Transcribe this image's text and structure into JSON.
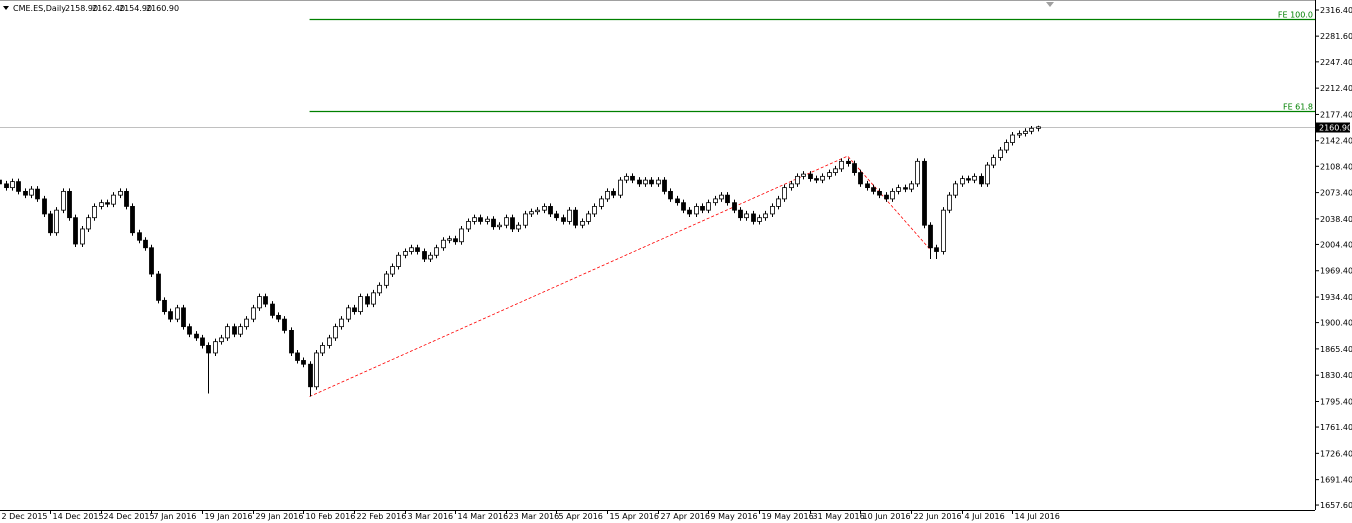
{
  "header": {
    "symbol": "CME.ES,Daily",
    "ohlc_labels": [
      "2158.90",
      "2162.40",
      "2154.90",
      "2160.90"
    ]
  },
  "chart_data": {
    "type": "candlestick",
    "categories": [
      "2 Dec 2015",
      null,
      null,
      null,
      null,
      null,
      null,
      null,
      "14 Dec 2015",
      null,
      null,
      null,
      null,
      null,
      null,
      null,
      "24 Dec 2015",
      null,
      null,
      null,
      null,
      null,
      null,
      null,
      "7 Jan 2016",
      null,
      null,
      null,
      null,
      null,
      null,
      null,
      "19 Jan 2016",
      null,
      null,
      null,
      null,
      null,
      null,
      null,
      "29 Jan 2016",
      null,
      null,
      null,
      null,
      null,
      null,
      null,
      "10 Feb 2016",
      null,
      null,
      null,
      null,
      null,
      null,
      null,
      "22 Feb 2016",
      null,
      null,
      null,
      null,
      null,
      null,
      null,
      "3 Mar 2016",
      null,
      null,
      null,
      null,
      null,
      null,
      null,
      "14 Mar 2016",
      null,
      null,
      null,
      null,
      null,
      null,
      null,
      "23 Mar 2016",
      null,
      null,
      null,
      null,
      null,
      null,
      null,
      "5 Apr 2016",
      null,
      null,
      null,
      null,
      null,
      null,
      null,
      "15 Apr 2016",
      null,
      null,
      null,
      null,
      null,
      null,
      null,
      "27 Apr 2016",
      null,
      null,
      null,
      null,
      null,
      null,
      null,
      "9 May 2016",
      null,
      null,
      null,
      null,
      null,
      null,
      null,
      "19 May 2016",
      null,
      null,
      null,
      null,
      null,
      null,
      null,
      "31 May 2016",
      null,
      null,
      null,
      null,
      null,
      null,
      null,
      "10 Jun 2016",
      null,
      null,
      null,
      null,
      null,
      null,
      null,
      "22 Jun 2016",
      null,
      null,
      null,
      null,
      null,
      null,
      null,
      "4 Jul 2016",
      null,
      null,
      null,
      null,
      null,
      null,
      null,
      "14 Jul 2016",
      null,
      null,
      null,
      null
    ],
    "open": [
      2090,
      2085,
      2080,
      2088,
      2075,
      2070,
      2078,
      2065,
      2045,
      2020,
      2050,
      2075,
      2040,
      2005,
      2025,
      2040,
      2055,
      2060,
      2058,
      2070,
      2075,
      2055,
      2020,
      2010,
      2000,
      1965,
      1930,
      1915,
      1905,
      1920,
      1895,
      1885,
      1880,
      1870,
      1860,
      1875,
      1880,
      1895,
      1885,
      1895,
      1905,
      1920,
      1935,
      1925,
      1910,
      1905,
      1890,
      1860,
      1850,
      1845,
      1815,
      1860,
      1870,
      1880,
      1895,
      1905,
      1920,
      1915,
      1935,
      1925,
      1940,
      1950,
      1965,
      1975,
      1990,
      1995,
      2000,
      1995,
      1985,
      1990,
      2000,
      2010,
      2012,
      2008,
      2025,
      2035,
      2040,
      2035,
      2038,
      2028,
      2030,
      2040,
      2025,
      2030,
      2045,
      2048,
      2050,
      2055,
      2045,
      2040,
      2035,
      2050,
      2030,
      2035,
      2045,
      2055,
      2065,
      2075,
      2070,
      2090,
      2095,
      2090,
      2085,
      2090,
      2085,
      2090,
      2075,
      2065,
      2060,
      2050,
      2045,
      2055,
      2050,
      2060,
      2065,
      2070,
      2060,
      2050,
      2040,
      2045,
      2035,
      2040,
      2045,
      2055,
      2065,
      2080,
      2085,
      2095,
      2098,
      2092,
      2090,
      2095,
      2100,
      2105,
      2115,
      2112,
      2100,
      2085,
      2080,
      2075,
      2070,
      2065,
      2075,
      2080,
      2078,
      2085,
      2115,
      2030,
      2000,
      1995,
      2050,
      2070,
      2085,
      2092,
      2090,
      2095,
      2085,
      2110,
      2120,
      2130,
      2140,
      2150,
      2152,
      2155,
      2158.9
    ],
    "high": [
      2094,
      2089,
      2092,
      2092,
      2079,
      2082,
      2082,
      2069,
      2049,
      2054,
      2079,
      2079,
      2044,
      2029,
      2044,
      2059,
      2064,
      2064,
      2074,
      2079,
      2079,
      2059,
      2024,
      2014,
      2004,
      1969,
      1934,
      1919,
      1924,
      1924,
      1899,
      1889,
      1884,
      1874,
      1879,
      1884,
      1899,
      1899,
      1899,
      1909,
      1924,
      1939,
      1939,
      1929,
      1914,
      1909,
      1894,
      1864,
      1854,
      1849,
      1864,
      1874,
      1884,
      1899,
      1909,
      1924,
      1924,
      1939,
      1939,
      1944,
      1954,
      1969,
      1979,
      1994,
      1999,
      2004,
      2004,
      1999,
      1994,
      2004,
      2014,
      2016,
      2016,
      2029,
      2039,
      2044,
      2044,
      2042,
      2042,
      2034,
      2044,
      2044,
      2034,
      2049,
      2052,
      2054,
      2059,
      2059,
      2049,
      2044,
      2054,
      2054,
      2039,
      2049,
      2059,
      2069,
      2079,
      2079,
      2094,
      2099,
      2099,
      2094,
      2094,
      2094,
      2094,
      2094,
      2079,
      2069,
      2064,
      2054,
      2059,
      2059,
      2064,
      2069,
      2074,
      2074,
      2064,
      2054,
      2049,
      2049,
      2044,
      2049,
      2059,
      2069,
      2084,
      2089,
      2099,
      2102,
      2102,
      2096,
      2099,
      2104,
      2109,
      2119,
      2119,
      2116,
      2104,
      2089,
      2084,
      2079,
      2074,
      2079,
      2084,
      2084,
      2089,
      2119,
      2119,
      2034,
      2004,
      2054,
      2074,
      2089,
      2096,
      2096,
      2099,
      2099,
      2114,
      2124,
      2134,
      2144,
      2154,
      2156,
      2159,
      2162,
      2162.4
    ],
    "low": [
      2081,
      2076,
      2076,
      2071,
      2066,
      2066,
      2061,
      2041,
      2016,
      2016,
      2046,
      2036,
      2001,
      2001,
      2021,
      2036,
      2051,
      2054,
      2054,
      2066,
      2051,
      2016,
      2006,
      1996,
      1961,
      1926,
      1911,
      1901,
      1901,
      1891,
      1881,
      1876,
      1866,
      1806,
      1856,
      1871,
      1876,
      1881,
      1881,
      1891,
      1901,
      1916,
      1921,
      1906,
      1901,
      1886,
      1856,
      1846,
      1841,
      1802,
      1811,
      1856,
      1866,
      1876,
      1891,
      1901,
      1911,
      1911,
      1921,
      1921,
      1936,
      1946,
      1961,
      1971,
      1986,
      1991,
      1991,
      1981,
      1981,
      1986,
      1996,
      2006,
      2004,
      2004,
      2021,
      2031,
      2031,
      2031,
      2024,
      2024,
      2026,
      2021,
      2021,
      2026,
      2041,
      2044,
      2046,
      2041,
      2036,
      2031,
      2031,
      2026,
      2026,
      2031,
      2041,
      2051,
      2061,
      2066,
      2066,
      2086,
      2086,
      2081,
      2081,
      2081,
      2081,
      2071,
      2061,
      2056,
      2046,
      2041,
      2041,
      2046,
      2046,
      2056,
      2061,
      2056,
      2046,
      2036,
      2036,
      2031,
      2031,
      2036,
      2041,
      2051,
      2061,
      2076,
      2081,
      2091,
      2088,
      2086,
      2086,
      2091,
      2096,
      2101,
      2108,
      2096,
      2081,
      2076,
      2071,
      2066,
      2061,
      2061,
      2071,
      2074,
      2074,
      2081,
      2026,
      1985,
      1985,
      1991,
      2046,
      2066,
      2081,
      2086,
      2086,
      2081,
      2081,
      2106,
      2116,
      2126,
      2136,
      2146,
      2148,
      2151,
      2154.9
    ],
    "close": [
      2085,
      2080,
      2088,
      2075,
      2070,
      2078,
      2065,
      2045,
      2020,
      2050,
      2075,
      2040,
      2005,
      2025,
      2040,
      2055,
      2060,
      2058,
      2070,
      2075,
      2055,
      2020,
      2010,
      2000,
      1965,
      1930,
      1915,
      1905,
      1920,
      1895,
      1885,
      1880,
      1870,
      1860,
      1875,
      1880,
      1895,
      1885,
      1895,
      1905,
      1920,
      1935,
      1925,
      1910,
      1905,
      1890,
      1860,
      1850,
      1845,
      1815,
      1860,
      1870,
      1880,
      1895,
      1905,
      1920,
      1915,
      1935,
      1925,
      1940,
      1950,
      1965,
      1975,
      1990,
      1995,
      2000,
      1995,
      1985,
      1990,
      2000,
      2010,
      2012,
      2008,
      2025,
      2035,
      2040,
      2035,
      2038,
      2028,
      2030,
      2040,
      2025,
      2030,
      2045,
      2048,
      2050,
      2055,
      2045,
      2040,
      2035,
      2050,
      2030,
      2035,
      2045,
      2055,
      2065,
      2075,
      2070,
      2090,
      2095,
      2090,
      2085,
      2090,
      2085,
      2090,
      2075,
      2065,
      2060,
      2050,
      2045,
      2055,
      2050,
      2060,
      2065,
      2070,
      2060,
      2050,
      2040,
      2045,
      2035,
      2040,
      2045,
      2055,
      2065,
      2080,
      2085,
      2095,
      2098,
      2092,
      2090,
      2095,
      2100,
      2105,
      2115,
      2112,
      2100,
      2085,
      2080,
      2075,
      2070,
      2065,
      2075,
      2080,
      2078,
      2085,
      2115,
      2030,
      2000,
      1995,
      2050,
      2070,
      2085,
      2092,
      2090,
      2095,
      2085,
      2110,
      2120,
      2130,
      2140,
      2150,
      2152,
      2155,
      2158.9,
      2160.9
    ],
    "up_color": "#ffffff",
    "down_color": "#000000",
    "line_color": "#000000",
    "ylim": [
      1651,
      2329.7
    ],
    "yticks": [
      {
        "value": 2316.4,
        "label": "2316.40"
      },
      {
        "value": 2281.6,
        "label": "2281.60"
      },
      {
        "value": 2247.4,
        "label": "2247.40"
      },
      {
        "value": 2212.4,
        "label": "2212.40"
      },
      {
        "value": 2177.4,
        "label": "2177.40"
      },
      {
        "value": 2142.4,
        "label": "2142.40"
      },
      {
        "value": 2108.4,
        "label": "2108.40"
      },
      {
        "value": 2073.4,
        "label": "2073.40"
      },
      {
        "value": 2038.4,
        "label": "2038.40"
      },
      {
        "value": 2004.4,
        "label": "2004.40"
      },
      {
        "value": 1969.4,
        "label": "1969.40"
      },
      {
        "value": 1934.4,
        "label": "1934.40"
      },
      {
        "value": 1900.4,
        "label": "1900.40"
      },
      {
        "value": 1865.4,
        "label": "1865.40"
      },
      {
        "value": 1830.4,
        "label": "1830.40"
      },
      {
        "value": 1795.4,
        "label": "1795.40"
      },
      {
        "value": 1761.4,
        "label": "1761.40"
      },
      {
        "value": 1726.4,
        "label": "1726.40"
      },
      {
        "value": 1691.4,
        "label": "1691.40"
      },
      {
        "value": 1657.6,
        "label": "1657.60"
      }
    ],
    "current_price": {
      "value": 2160.9,
      "label": "2160.90",
      "color": "#c0c0c0"
    },
    "levels": [
      {
        "name": "FE 100.0",
        "value": 2304.4,
        "start": 49,
        "color": "#008000"
      },
      {
        "name": "FE 61.8",
        "value": 2182,
        "start": 49,
        "color": "#008000"
      }
    ],
    "fibo_points": {
      "index": [
        49,
        134,
        147
      ],
      "price": [
        1802,
        2122,
        1998
      ],
      "color": "#ff0000"
    }
  }
}
